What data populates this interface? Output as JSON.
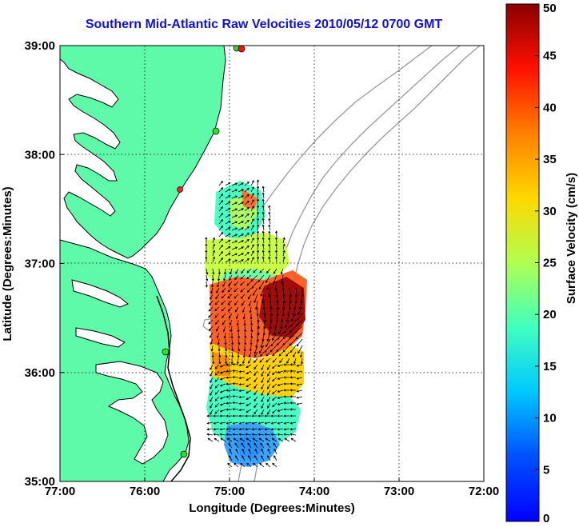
{
  "title": "Southern Mid-Atlantic Raw Velocities 2010/05/12 0700 GMT",
  "chart_data": {
    "type": "heatmap",
    "title": "Southern Mid-Atlantic Raw Velocities 2010/05/12 0700 GMT",
    "xlabel": "Longitude (Degrees:Minutes)",
    "ylabel": "Latitude (Degrees:Minutes)",
    "x_ticks": [
      "77:00",
      "76:00",
      "75:00",
      "74:00",
      "73:00",
      "72:00"
    ],
    "y_ticks": [
      "39:00",
      "38:00",
      "37:00",
      "36:00",
      "35:00"
    ],
    "xlim": [
      -77,
      -72
    ],
    "ylim": [
      35,
      39
    ],
    "grid": true,
    "colorbar": {
      "label": "Surface Velocity (cm/s)",
      "ticks": [
        "50",
        "45",
        "40",
        "35",
        "30",
        "25",
        "20",
        "15",
        "10",
        "5",
        "0"
      ],
      "range": [
        0,
        50
      ],
      "colormap": "jet"
    },
    "colors": {
      "land": "#5ffaa9",
      "coast": "#000000",
      "bathymetry": "#9a9a9a",
      "title": "#1010e0"
    }
  }
}
